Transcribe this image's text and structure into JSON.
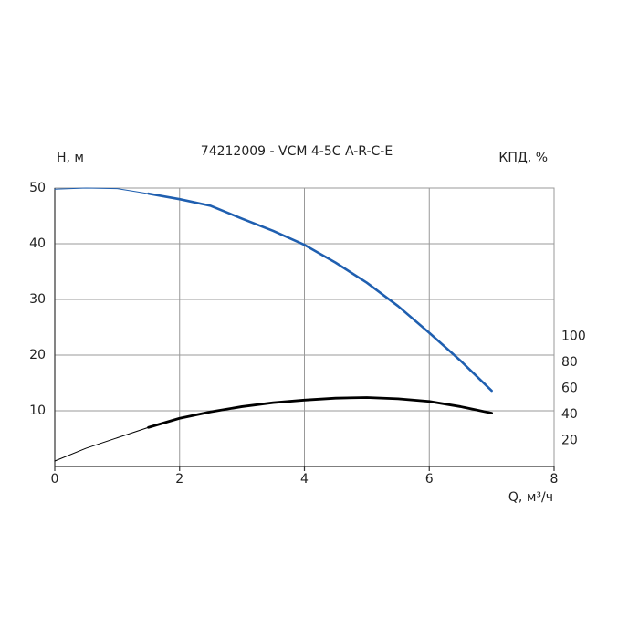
{
  "chart_data": {
    "type": "line",
    "title": "74212009 - VCM 4-5C A-R-C-E",
    "y_label": "H, м",
    "y2_label": "КПД, %",
    "x_label": "Q, м³/ч",
    "xlim": [
      0,
      8
    ],
    "xticks": [
      0,
      2,
      4,
      6,
      8
    ],
    "ylim": [
      0,
      50
    ],
    "yticks": [
      10,
      20,
      30,
      40,
      50
    ],
    "y2lim": [
      0,
      214
    ],
    "y2ticks": [
      20,
      40,
      60,
      80,
      100
    ],
    "grid": true,
    "series": [
      {
        "color": "#1f5fb0",
        "width": 1,
        "x": [
          0,
          0.5,
          1,
          1.5
        ],
        "values": [
          49.8,
          50,
          49.9,
          49
        ]
      },
      {
        "color": "#1f5fb0",
        "width": 2.6,
        "x": [
          1.5,
          2,
          2.5,
          3,
          3.5,
          4,
          4.5,
          5,
          5.5,
          6,
          6.5,
          7
        ],
        "values": [
          49,
          48,
          46.8,
          44.5,
          42.3,
          39.8,
          36.6,
          33,
          28.8,
          24,
          19,
          13.6
        ]
      },
      {
        "color": "#000000",
        "width": 1,
        "axis": "y2",
        "x": [
          0,
          0.5,
          1,
          1.5
        ],
        "values": [
          4.2,
          14,
          22,
          30
        ]
      },
      {
        "color": "#000000",
        "width": 2.8,
        "axis": "y2",
        "x": [
          1.5,
          2,
          2.5,
          3,
          3.5,
          4,
          4.5,
          5,
          5.5,
          6,
          6.5,
          7
        ],
        "values": [
          30,
          37,
          42,
          46,
          49,
          51,
          52.5,
          53,
          52,
          50,
          46,
          41
        ]
      }
    ]
  }
}
